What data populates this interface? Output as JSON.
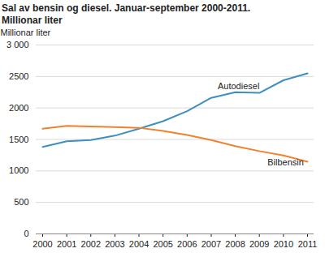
{
  "chart_data": {
    "type": "line",
    "title": "Sal av bensin og diesel. Januar-september 2000-2011.",
    "subtitle": "Millionar liter",
    "y_label": "Millionar liter",
    "x": [
      2000,
      2001,
      2002,
      2003,
      2004,
      2005,
      2006,
      2007,
      2008,
      2009,
      2010,
      2011
    ],
    "series": [
      {
        "name": "Autodiesel",
        "color": "#3d8fbf",
        "values": [
          1380,
          1470,
          1490,
          1560,
          1670,
          1790,
          1950,
          2160,
          2250,
          2240,
          2440,
          2550
        ]
      },
      {
        "name": "Bilbensin",
        "color": "#f0822d",
        "values": [
          1670,
          1715,
          1705,
          1695,
          1685,
          1635,
          1570,
          1490,
          1395,
          1315,
          1245,
          1145
        ]
      }
    ],
    "xlim": [
      2000,
      2011
    ],
    "xticks": [
      2000,
      2001,
      2002,
      2003,
      2004,
      2005,
      2006,
      2007,
      2008,
      2009,
      2010,
      2011
    ],
    "ylim": [
      0,
      3000
    ],
    "yticks": [
      0,
      500,
      1000,
      1500,
      2000,
      2500,
      {
        "value": 3000,
        "label": "3 000"
      }
    ],
    "grid": true
  }
}
